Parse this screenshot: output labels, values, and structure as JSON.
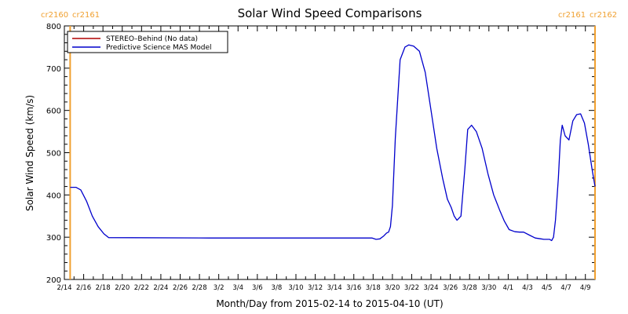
{
  "chart_data": {
    "type": "line",
    "title": "Solar Wind Speed Comparisons",
    "xlabel": "Month/Day from 2015-02-14 to 2015-04-10 (UT)",
    "ylabel": "Solar Wind Speed (km/s)",
    "ylim": [
      200,
      800
    ],
    "yticks": [
      200,
      300,
      400,
      500,
      600,
      700,
      800
    ],
    "xlim": [
      "2015-02-14",
      "2015-04-10"
    ],
    "xtick_labels": [
      "2/14",
      "2/16",
      "2/18",
      "2/20",
      "2/22",
      "2/24",
      "2/26",
      "2/28",
      "3/2",
      "3/4",
      "3/6",
      "3/8",
      "3/10",
      "3/12",
      "3/14",
      "3/16",
      "3/18",
      "3/20",
      "3/22",
      "3/24",
      "3/26",
      "3/28",
      "3/30",
      "4/1",
      "4/3",
      "4/5",
      "4/7",
      "4/9"
    ],
    "legend_position": "top-left",
    "carrington_markers": [
      {
        "date": "2015-02-14.6",
        "label_left": "cr2160",
        "label_right": "cr2161",
        "side": "left"
      },
      {
        "date": "2015-04-10.0",
        "label_left": "cr2161",
        "label_right": "cr2162",
        "side": "right"
      }
    ],
    "series": [
      {
        "name": "STEREO–Behind (No data)",
        "color": "#b00000",
        "x": [],
        "y": []
      },
      {
        "name": "Predictive Science MAS Model",
        "color": "#0000cc",
        "x": [
          "2015-02-14.6",
          "2015-02-15.2",
          "2015-02-15.7",
          "2015-02-16.3",
          "2015-02-16.9",
          "2015-02-17.5",
          "2015-02-18.1",
          "2015-02-18.6",
          "2015-03-01",
          "2015-03-10",
          "2015-03-17.9",
          "2015-03-18.3",
          "2015-03-18.7",
          "2015-03-19.1",
          "2015-03-19.4",
          "2015-03-19.6",
          "2015-03-19.8",
          "2015-03-20.0",
          "2015-03-20.3",
          "2015-03-20.8",
          "2015-03-21.3",
          "2015-03-21.7",
          "2015-03-22.2",
          "2015-03-22.8",
          "2015-03-23.4",
          "2015-03-24.0",
          "2015-03-24.6",
          "2015-03-25.2",
          "2015-03-25.7",
          "2015-03-26.1",
          "2015-03-26.4",
          "2015-03-26.7",
          "2015-03-27.1",
          "2015-03-27.5",
          "2015-03-27.8",
          "2015-03-28.2",
          "2015-03-28.7",
          "2015-03-29.3",
          "2015-03-29.9",
          "2015-03-30.5",
          "2015-03-31.1",
          "2015-03-31.6",
          "2015-04-01.1",
          "2015-04-01.7",
          "2015-04-02.2",
          "2015-04-02.6",
          "2015-04-03.2",
          "2015-04-03.8",
          "2015-04-04.4",
          "2015-04-04.7",
          "2015-04-04.9",
          "2015-04-05.1",
          "2015-04-05.3",
          "2015-04-05.5",
          "2015-04-05.7",
          "2015-04-05.9",
          "2015-04-06.2",
          "2015-04-06.4",
          "2015-04-06.6",
          "2015-04-06.9",
          "2015-04-07.3",
          "2015-04-07.7",
          "2015-04-08.1",
          "2015-04-08.5",
          "2015-04-08.9",
          "2015-04-09.3",
          "2015-04-09.7",
          "2015-04-10.0"
        ],
        "y": [
          418,
          418,
          412,
          385,
          350,
          325,
          308,
          299,
          298,
          298,
          298,
          295,
          296,
          303,
          310,
          312,
          325,
          375,
          535,
          720,
          750,
          755,
          752,
          740,
          690,
          600,
          510,
          440,
          390,
          370,
          350,
          340,
          350,
          460,
          555,
          565,
          550,
          510,
          450,
          400,
          365,
          338,
          318,
          313,
          312,
          312,
          305,
          298,
          296,
          295,
          295,
          295,
          295,
          292,
          300,
          340,
          440,
          530,
          565,
          540,
          530,
          575,
          590,
          592,
          570,
          520,
          460,
          420
        ]
      }
    ]
  }
}
